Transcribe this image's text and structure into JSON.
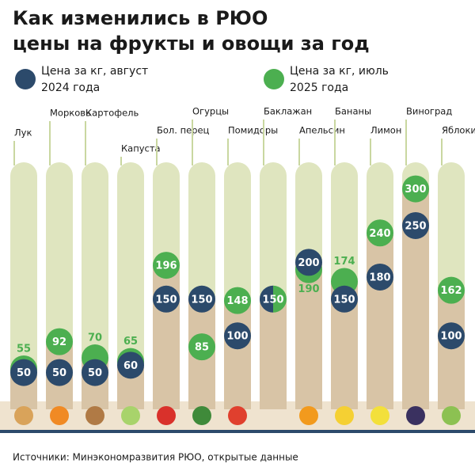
{
  "chart_data": {
    "type": "bubble-columns",
    "title": [
      "Как изменились в РЮО",
      "цены на фрукты и овощи за год"
    ],
    "categories": [
      "Лук",
      "Морковь",
      "Картофель",
      "Капуста",
      "Бол. перец",
      "Огурцы",
      "Помидоры",
      "Баклажан",
      "Апельсин",
      "Бананы",
      "Лимон",
      "Виноград",
      "Яблоки"
    ],
    "series": [
      {
        "name": [
          "Цена за кг, август",
          "2024 года"
        ],
        "color": "#2c4a6b",
        "values": [
          50,
          50,
          50,
          60,
          150,
          150,
          100,
          150,
          200,
          150,
          180,
          250,
          100
        ]
      },
      {
        "name": [
          "Цена за кг, июль",
          "2025 года"
        ],
        "color": "#4caf50",
        "values": [
          55,
          92,
          70,
          65,
          196,
          85,
          148,
          150,
          190,
          174,
          240,
          300,
          162
        ]
      }
    ],
    "ylim": [
      0,
      320
    ],
    "source": "Источники: Минэкономразвития РЮО, открытые данные"
  }
}
